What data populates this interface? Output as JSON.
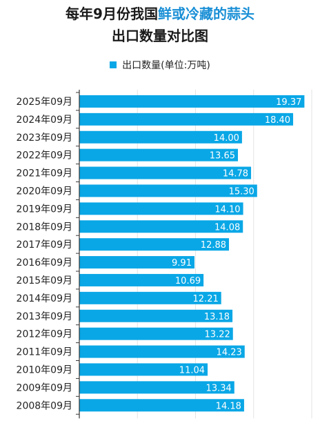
{
  "header": {
    "title_part1": "每年9月份我国",
    "title_highlight": "鲜或冷藏的蒜头",
    "subtitle": "出口数量对比图"
  },
  "chart_data": {
    "type": "bar",
    "orientation": "horizontal",
    "categories": [
      "2025年09月",
      "2024年09月",
      "2023年09月",
      "2022年09月",
      "2021年09月",
      "2020年09月",
      "2019年09月",
      "2018年09月",
      "2017年09月",
      "2016年09月",
      "2015年09月",
      "2014年09月",
      "2013年09月",
      "2012年09月",
      "2011年09月",
      "2010年09月",
      "2009年09月",
      "2008年09月"
    ],
    "series": [
      {
        "name": "出口数量(单位:万吨)",
        "values": [
          19.37,
          18.4,
          14.0,
          13.65,
          14.78,
          15.3,
          14.1,
          14.08,
          12.88,
          9.91,
          10.69,
          12.21,
          13.18,
          13.22,
          14.23,
          11.04,
          13.34,
          14.18
        ],
        "labels": [
          "19.37",
          "18.40",
          "14.00",
          "13.65",
          "14.78",
          "15.30",
          "14.10",
          "14.08",
          "12.88",
          "9.91",
          "10.69",
          "12.21",
          "13.18",
          "13.22",
          "14.23",
          "11.04",
          "13.34",
          "14.18"
        ]
      }
    ],
    "legend_position": "top-center",
    "xlim": [
      0,
      20
    ],
    "grid": true
  },
  "colors": {
    "bar": "#0aa7e6",
    "highlight_title": "#1a8fd6",
    "grid": "#e3e3e3",
    "axis": "#333333"
  }
}
